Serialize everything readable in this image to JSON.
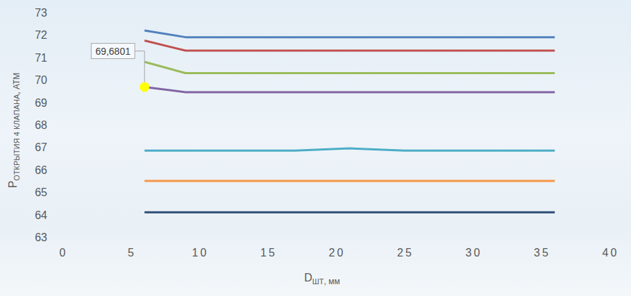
{
  "chart_data": {
    "type": "line",
    "xlabel": {
      "text": "D",
      "subscript": "ШТ",
      "suffix": ", мм"
    },
    "ylabel": {
      "text": "P",
      "subscript": "ОТКРЫТИЯ 4 КЛАПАНА",
      "suffix": ", АТМ"
    },
    "x": [
      6,
      9,
      17,
      21,
      25,
      36
    ],
    "series": [
      {
        "color": "#4f81bd",
        "values": [
          72.2,
          71.9,
          71.9,
          71.9,
          71.9,
          71.9
        ]
      },
      {
        "color": "#c0504d",
        "values": [
          71.75,
          71.3,
          71.3,
          71.3,
          71.3,
          71.3
        ]
      },
      {
        "color": "#9bbb59",
        "values": [
          70.8,
          70.3,
          70.3,
          70.3,
          70.3,
          70.3
        ]
      },
      {
        "color": "#8064a2",
        "values": [
          69.68,
          69.45,
          69.45,
          69.45,
          69.45,
          69.45
        ]
      },
      {
        "color": "#4bacc6",
        "values": [
          66.85,
          66.85,
          66.85,
          66.95,
          66.85,
          66.85
        ]
      },
      {
        "color": "#f79646",
        "values": [
          65.5,
          65.5,
          65.5,
          65.5,
          65.5,
          65.5
        ]
      },
      {
        "color": "#2c4d75",
        "values": [
          64.1,
          64.1,
          64.1,
          64.1,
          64.1,
          64.1
        ]
      }
    ],
    "annotations": [
      {
        "label": "69,6801",
        "x": 6,
        "y": 69.6801,
        "color": "#ffff00",
        "marker": "circle"
      }
    ],
    "xlim": [
      0,
      40
    ],
    "xticks": [
      0,
      5,
      10,
      15,
      20,
      25,
      30,
      35,
      40
    ],
    "ylim": [
      63,
      73
    ],
    "yticks": [
      63,
      64,
      65,
      66,
      67,
      68,
      69,
      70,
      71,
      72,
      73
    ],
    "grid": false
  }
}
